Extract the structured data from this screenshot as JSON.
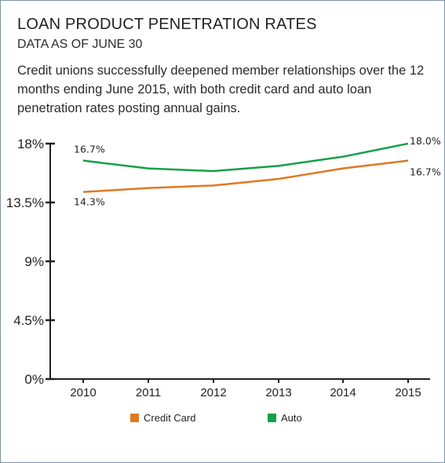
{
  "title": "LOAN PRODUCT PENETRATION RATES",
  "subtitle": "DATA AS OF JUNE 30",
  "description": "Credit unions successfully deepened member relationships over the 12 months ending June 2015, with both credit card and auto loan penetration rates posting annual gains.",
  "colors": {
    "credit_card": "#e07822",
    "auto": "#16a04a",
    "axis": "#231f20",
    "frame": "#7f93a8"
  },
  "chart_data": {
    "type": "line",
    "categories": [
      "2010",
      "2011",
      "2012",
      "2013",
      "2014",
      "2015"
    ],
    "ylim": [
      0,
      18
    ],
    "yticks": [
      "0%",
      "4.5%",
      "9%",
      "13.5%",
      "18%"
    ],
    "ytick_values": [
      0,
      4.5,
      9,
      13.5,
      18
    ],
    "grid": false,
    "legend": "bottom",
    "series": [
      {
        "name": "Credit Card",
        "color": "#e07822",
        "values": [
          14.3,
          14.6,
          14.8,
          15.3,
          16.1,
          16.7
        ],
        "labels": {
          "first": "14.3%",
          "last": "16.7%"
        }
      },
      {
        "name": "Auto",
        "color": "#16a04a",
        "values": [
          16.7,
          16.1,
          15.9,
          16.3,
          17.0,
          18.0
        ],
        "labels": {
          "first": "16.7%",
          "last": "18.0%"
        }
      }
    ]
  }
}
